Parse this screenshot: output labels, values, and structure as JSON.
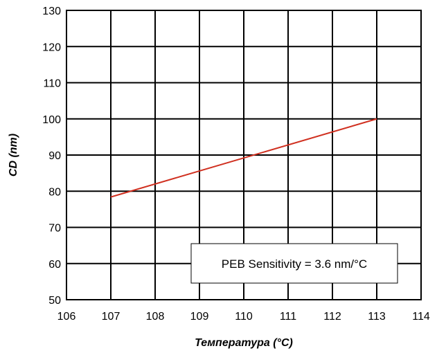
{
  "chart_data": {
    "type": "line",
    "title": "",
    "xlabel": "Температура  (°C)",
    "ylabel": "CD (nm)",
    "xlim": [
      106,
      114
    ],
    "ylim": [
      50,
      130
    ],
    "x_ticks": [
      {
        "v": 106,
        "label": "106"
      },
      {
        "v": 107,
        "label": "107"
      },
      {
        "v": 108,
        "label": "108"
      },
      {
        "v": 109,
        "label": "109"
      },
      {
        "v": 110,
        "label": "110"
      },
      {
        "v": 111,
        "label": "111"
      },
      {
        "v": 112,
        "label": "112"
      },
      {
        "v": 113,
        "label": "113"
      },
      {
        "v": 114,
        "label": "114"
      }
    ],
    "y_ticks": [
      {
        "v": 50,
        "label": "50"
      },
      {
        "v": 60,
        "label": "60"
      },
      {
        "v": 70,
        "label": "70"
      },
      {
        "v": 80,
        "label": "80"
      },
      {
        "v": 90,
        "label": "90"
      },
      {
        "v": 100,
        "label": "100"
      },
      {
        "v": 110,
        "label": "110"
      },
      {
        "v": 120,
        "label": "120"
      },
      {
        "v": 130,
        "label": "130"
      }
    ],
    "grid": true,
    "series": [
      {
        "color": "#d03020",
        "x": [
          107,
          113
        ],
        "y": [
          78.4,
          100
        ]
      }
    ],
    "annotation": {
      "text": "PEB Sensitivity = 3.6 nm/°C",
      "placement": "lower-right"
    }
  }
}
